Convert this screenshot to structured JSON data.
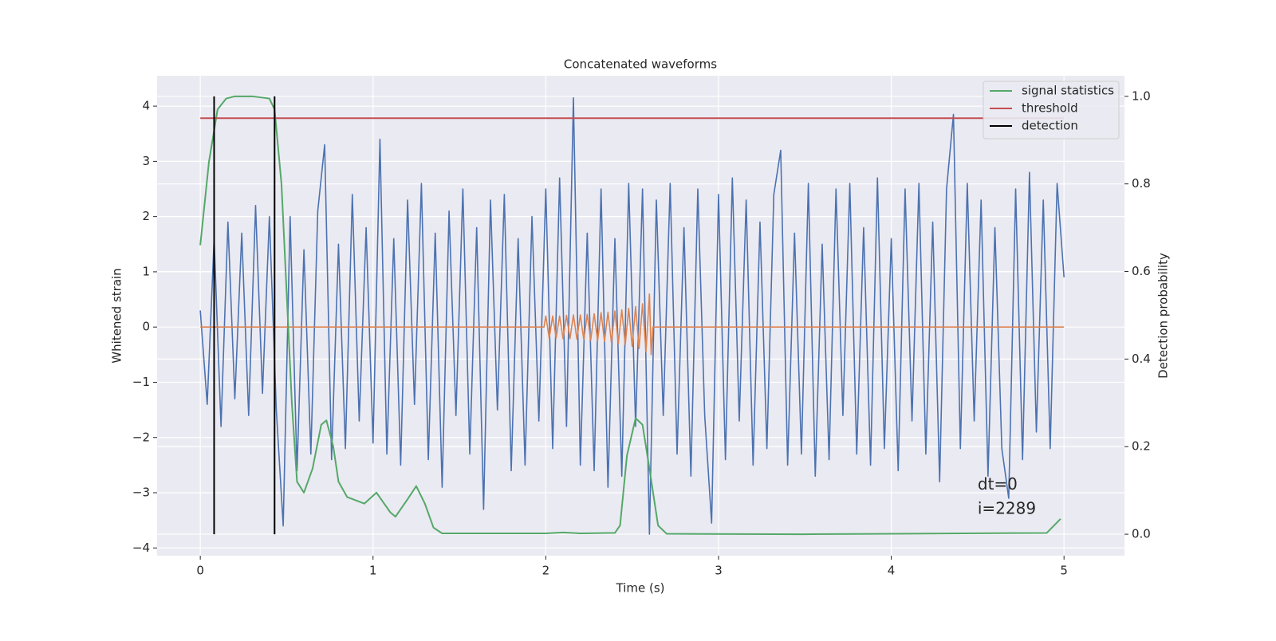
{
  "chart_data": {
    "type": "line",
    "title": "Concatenated waveforms",
    "xlabel": "Time (s)",
    "ylabel": "Whitened strain",
    "y2label": "Detection probability",
    "xlim": [
      -0.25,
      5.35
    ],
    "ylim": [
      -4.14,
      4.55
    ],
    "y2lim": [
      -0.049,
      1.047
    ],
    "xticks": [
      0,
      1,
      2,
      3,
      4,
      5
    ],
    "yticks": [
      {
        "value": -4,
        "label": "−4"
      },
      {
        "value": -3,
        "label": "−3"
      },
      {
        "value": -2,
        "label": "−2"
      },
      {
        "value": -1,
        "label": "−1"
      },
      0,
      1,
      2,
      3,
      4
    ],
    "y2ticks": [
      {
        "value": 0,
        "label": "0.0"
      },
      0.2,
      0.4,
      0.6,
      0.8,
      {
        "value": 1,
        "label": "1.0"
      }
    ],
    "grid": true,
    "legend": "upper right",
    "background": "#eaeaf2",
    "series": [
      {
        "color": "#4c72b0",
        "x": [
          0,
          0.04,
          0.08,
          0.12,
          0.16,
          0.2,
          0.24,
          0.28,
          0.32,
          0.36,
          0.4,
          0.44,
          0.48,
          0.52,
          0.56,
          0.6,
          0.64,
          0.68,
          0.72,
          0.76,
          0.8,
          0.84,
          0.88,
          0.92,
          0.96,
          1.0,
          1.04,
          1.08,
          1.12,
          1.16,
          1.2,
          1.24,
          1.28,
          1.32,
          1.36,
          1.4,
          1.44,
          1.48,
          1.52,
          1.56,
          1.6,
          1.64,
          1.68,
          1.72,
          1.76,
          1.8,
          1.84,
          1.88,
          1.92,
          1.96,
          2.0,
          2.04,
          2.08,
          2.12,
          2.16,
          2.2,
          2.24,
          2.28,
          2.32,
          2.36,
          2.4,
          2.44,
          2.48,
          2.52,
          2.56,
          2.6,
          2.64,
          2.68,
          2.72,
          2.76,
          2.8,
          2.84,
          2.88,
          2.92,
          2.96,
          3.0,
          3.04,
          3.08,
          3.12,
          3.16,
          3.2,
          3.24,
          3.28,
          3.32,
          3.36,
          3.4,
          3.44,
          3.48,
          3.52,
          3.56,
          3.6,
          3.64,
          3.68,
          3.72,
          3.76,
          3.8,
          3.84,
          3.88,
          3.92,
          3.96,
          4.0,
          4.04,
          4.08,
          4.12,
          4.16,
          4.2,
          4.24,
          4.28,
          4.32,
          4.36,
          4.4,
          4.44,
          4.48,
          4.52,
          4.56,
          4.6,
          4.64,
          4.68,
          4.72,
          4.76,
          4.8,
          4.84,
          4.88,
          4.92,
          4.96,
          5.0
        ],
        "values": [
          0.3,
          -1.4,
          1.6,
          -1.8,
          1.9,
          -1.3,
          1.7,
          -1.6,
          2.2,
          -1.2,
          2.0,
          -1.5,
          -3.6,
          2.0,
          -2.6,
          1.4,
          -2.3,
          2.1,
          3.3,
          -2.4,
          1.5,
          -2.2,
          2.4,
          -1.7,
          1.8,
          -2.1,
          3.4,
          -2.3,
          1.6,
          -2.5,
          2.3,
          -1.4,
          2.6,
          -2.4,
          1.7,
          -2.9,
          2.1,
          -1.6,
          2.5,
          -2.3,
          1.8,
          -3.3,
          2.3,
          -1.5,
          2.4,
          -2.6,
          1.6,
          -2.5,
          2.0,
          -1.7,
          2.5,
          -2.2,
          2.7,
          -1.8,
          4.15,
          -2.5,
          1.7,
          -2.6,
          2.5,
          -2.9,
          1.6,
          -2.7,
          2.6,
          -1.8,
          2.5,
          -3.75,
          2.3,
          -1.6,
          2.6,
          -2.3,
          1.8,
          -2.7,
          2.5,
          -1.6,
          -3.55,
          2.4,
          -2.4,
          2.7,
          -1.7,
          2.3,
          -2.5,
          1.9,
          -2.2,
          2.4,
          3.2,
          -2.5,
          1.7,
          -2.3,
          2.6,
          -2.7,
          1.5,
          -2.4,
          2.5,
          -1.6,
          2.6,
          -2.3,
          1.8,
          -2.5,
          2.7,
          -2.2,
          1.6,
          -2.6,
          2.5,
          -1.7,
          2.6,
          -2.3,
          1.9,
          -2.8,
          2.5,
          3.85,
          -2.2,
          2.6,
          -1.7,
          2.3,
          -2.7,
          1.8,
          -2.2,
          -3.1,
          2.5,
          -2.4,
          2.8,
          -1.9,
          2.3,
          -2.2,
          2.6,
          0.9
        ]
      },
      {
        "color": "#dd8452",
        "x": [
          0,
          1.99,
          2.0,
          2.02,
          2.04,
          2.06,
          2.08,
          2.1,
          2.12,
          2.14,
          2.16,
          2.18,
          2.2,
          2.22,
          2.24,
          2.26,
          2.28,
          2.3,
          2.32,
          2.34,
          2.36,
          2.38,
          2.4,
          2.42,
          2.44,
          2.46,
          2.48,
          2.5,
          2.52,
          2.54,
          2.56,
          2.58,
          2.6,
          2.61,
          2.62,
          5.0
        ],
        "values": [
          0,
          0,
          0.2,
          -0.2,
          0.2,
          -0.2,
          0.2,
          -0.21,
          0.21,
          -0.21,
          0.22,
          -0.22,
          0.22,
          -0.23,
          0.23,
          -0.24,
          0.24,
          -0.25,
          0.26,
          -0.26,
          0.27,
          -0.28,
          0.29,
          -0.3,
          0.31,
          -0.32,
          0.34,
          -0.35,
          0.37,
          -0.39,
          0.42,
          -0.45,
          0.6,
          -0.5,
          0,
          0
        ]
      },
      {
        "name": "signal statistics",
        "color": "#55a868",
        "axis": "y2",
        "x": [
          0,
          0.05,
          0.1,
          0.15,
          0.2,
          0.3,
          0.4,
          0.43,
          0.47,
          0.5,
          0.53,
          0.56,
          0.6,
          0.65,
          0.7,
          0.73,
          0.77,
          0.8,
          0.85,
          0.95,
          1.02,
          1.1,
          1.13,
          1.2,
          1.25,
          1.3,
          1.35,
          1.4,
          2.0,
          2.1,
          2.2,
          2.4,
          2.43,
          2.47,
          2.52,
          2.56,
          2.6,
          2.65,
          2.7,
          3.5,
          4.9,
          4.98
        ],
        "values": [
          0.66,
          0.85,
          0.97,
          0.995,
          1.0,
          1.0,
          0.995,
          0.97,
          0.8,
          0.55,
          0.3,
          0.12,
          0.095,
          0.15,
          0.25,
          0.26,
          0.2,
          0.12,
          0.085,
          0.07,
          0.095,
          0.05,
          0.04,
          0.08,
          0.11,
          0.07,
          0.015,
          0.002,
          0.002,
          0.004,
          0.002,
          0.003,
          0.02,
          0.18,
          0.265,
          0.25,
          0.15,
          0.02,
          0.001,
          0.0,
          0.003,
          0.035
        ]
      },
      {
        "name": "threshold",
        "color": "#c44e52",
        "axis": "y2",
        "x": [
          0,
          5
        ],
        "values": [
          0.95,
          0.95
        ]
      },
      {
        "name": "detection",
        "color": "#000000",
        "axis": "y2",
        "type": "vlines",
        "x": [
          0.08,
          0.43
        ],
        "ymin": [
          0,
          0
        ],
        "ymax": [
          1,
          1
        ]
      }
    ],
    "annotations": [
      {
        "text": "dt=0",
        "x": 4.5,
        "y": -2.86
      },
      {
        "text": "i=2289",
        "x": 4.5,
        "y": -3.3
      }
    ]
  }
}
